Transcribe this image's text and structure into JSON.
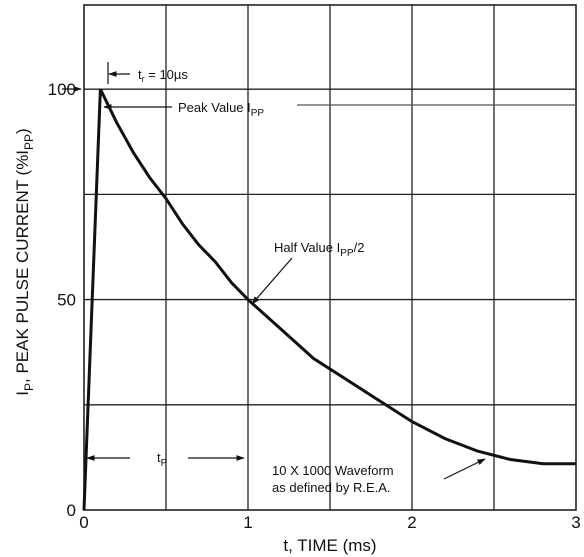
{
  "chart_data": {
    "type": "line",
    "title": "",
    "xlabel": "t, TIME (ms)",
    "ylabel": "IP, PEAK PULSE CURRENT (%IPP)",
    "ylabel_parts": {
      "a": "I",
      "b": "P",
      "c": ", PEAK PULSE CURRENT (%I",
      "d": "PP",
      "e": ")"
    },
    "xlim": [
      0,
      3
    ],
    "ylim": [
      0,
      120
    ],
    "x_ticks": [
      0,
      1,
      2,
      3
    ],
    "x_tick_labels": [
      "0",
      "1",
      "2",
      "3"
    ],
    "y_ticks": [
      0,
      50,
      100
    ],
    "y_tick_labels": [
      "0",
      "50",
      "100"
    ],
    "x_grid": [
      0.5,
      1,
      1.5,
      2,
      2.5
    ],
    "y_grid": [
      25,
      50,
      75,
      100
    ],
    "grid": true,
    "series": [
      {
        "name": "",
        "x": [
          0,
          0.1,
          0.2,
          0.3,
          0.4,
          0.5,
          0.6,
          0.7,
          0.8,
          0.9,
          1.0,
          1.2,
          1.4,
          1.6,
          1.8,
          2.0,
          2.2,
          2.4,
          2.6,
          2.8,
          3.0
        ],
        "y": [
          0,
          100,
          92,
          85,
          79,
          74,
          68,
          63,
          59,
          54,
          50,
          43,
          36,
          31,
          26,
          21,
          17,
          14,
          12,
          11,
          11
        ]
      }
    ],
    "annotations": {
      "tr_label": {
        "a": "t",
        "b": "r",
        "c": " = 10µs"
      },
      "peak_label": {
        "a": "Peak Value I",
        "b": "PP"
      },
      "half_label": {
        "a": "Half Value I",
        "b": "PP",
        "c": "/2"
      },
      "tp_label": {
        "a": "t",
        "b": "P"
      },
      "waveform_line1": "10 X 1000 Waveform",
      "waveform_line2": "as defined by R.E.A."
    }
  }
}
